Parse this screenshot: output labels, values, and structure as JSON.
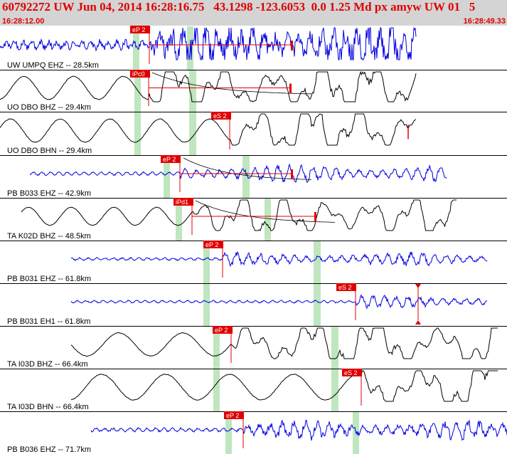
{
  "header": {
    "title": "60792272 UW Jun 04, 2014 16:28:16.75   43.1298 -123.6053  0.0 1.25 Md px amyw UW 01   5",
    "start_time": "16:28:12.00",
    "end_time": "16:28:49.33"
  },
  "colors": {
    "pick": "#e00000",
    "window": "#bfe6bf",
    "blue_trace": "#0000e0",
    "black_trace": "#000000"
  },
  "traces": [
    {
      "label": "UW UMPQ EHZ -- 28.5km",
      "pick": "eP 2",
      "color": "blue"
    },
    {
      "label": "UO DBO BHZ -- 29.4km",
      "pick": "iPc0",
      "color": "black"
    },
    {
      "label": "UO DBO BHN -- 29.4km",
      "pick": "eS 2",
      "color": "black"
    },
    {
      "label": "PB B033 EHZ -- 42.9km",
      "pick": "eP 2",
      "color": "blue"
    },
    {
      "label": "TA K02D BHZ -- 48.5km",
      "pick": "iPd1",
      "color": "black"
    },
    {
      "label": "PB B031 EHZ -- 61.8km",
      "pick": "eP 2",
      "color": "blue"
    },
    {
      "label": "PB B031 EH1 -- 61.8km",
      "pick": "eS 2",
      "color": "blue"
    },
    {
      "label": "TA I03D BHZ -- 66.4km",
      "pick": "eP 2",
      "color": "black"
    },
    {
      "label": "TA I03D BHN -- 66.4km",
      "pick": "eS 2",
      "color": "black"
    },
    {
      "label": "PB B036 EHZ -- 71.7km",
      "pick": "eP 2",
      "color": "blue"
    }
  ]
}
